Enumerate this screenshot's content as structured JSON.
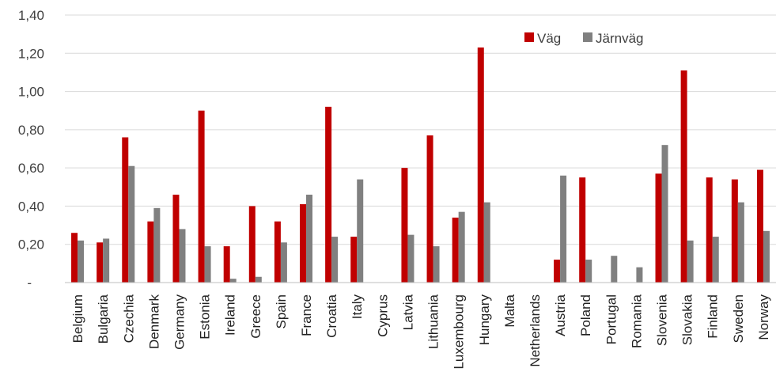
{
  "colors": {
    "road": "#c00000",
    "rail": "#808080",
    "grid": "#d9d9d9",
    "axis": "#bfbfbf"
  },
  "chart_data": {
    "type": "bar",
    "categories": [
      "Belgium",
      "Bulgaria",
      "Czechia",
      "Denmark",
      "Germany",
      "Estonia",
      "Ireland",
      "Greece",
      "Spain",
      "France",
      "Croatia",
      "Italy",
      "Cyprus",
      "Latvia",
      "Lithuania",
      "Luxembourg",
      "Hungary",
      "Malta",
      "Netherlands",
      "Austria",
      "Poland",
      "Portugal",
      "Romania",
      "Slovenia",
      "Slovakia",
      "Finland",
      "Sweden",
      "Norway"
    ],
    "series": [
      {
        "name": "Väg",
        "values": [
          0.26,
          0.21,
          0.76,
          0.32,
          0.46,
          0.9,
          0.19,
          0.4,
          0.32,
          0.41,
          0.92,
          0.24,
          0,
          0.6,
          0.77,
          0.34,
          1.23,
          0,
          0,
          0.12,
          0.55,
          0,
          0,
          0.57,
          1.11,
          0.55,
          0.54,
          0.59
        ]
      },
      {
        "name": "Järnväg",
        "values": [
          0.22,
          0.23,
          0.61,
          0.39,
          0.28,
          0.19,
          0.02,
          0.03,
          0.21,
          0.46,
          0.24,
          0.54,
          0,
          0.25,
          0.19,
          0.37,
          0.42,
          0,
          0,
          0.56,
          0.12,
          0.14,
          0.08,
          0.72,
          0.22,
          0.24,
          0.42,
          0.27
        ]
      }
    ],
    "ylim": [
      0,
      1.4
    ],
    "yticks": [
      "-",
      "0,20",
      "0,40",
      "0,60",
      "0,80",
      "1,00",
      "1,20",
      "1,40"
    ],
    "grid": true,
    "legend_position": "top-right"
  }
}
